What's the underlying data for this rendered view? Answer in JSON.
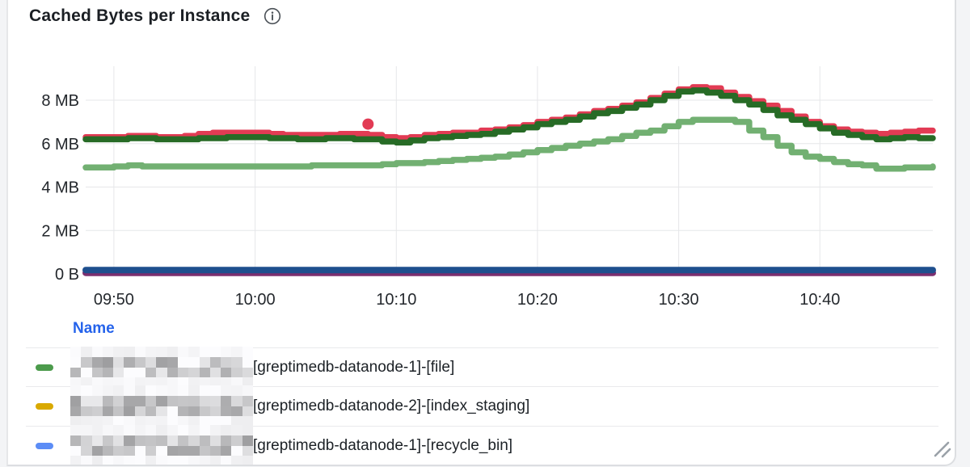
{
  "header": {
    "title": "Cached Bytes per Instance"
  },
  "icons": {
    "info": "circle-i-info",
    "resize": "double-diagonal-resize"
  },
  "legend": {
    "header": "Name",
    "rows": [
      {
        "color": "#4c9b4c",
        "label": "[greptimedb-datanode-1]-[file]",
        "prefix_redacted": true
      },
      {
        "color": "#d9a900",
        "label": "[greptimedb-datanode-2]-[index_staging]",
        "prefix_redacted": true
      },
      {
        "color": "#5c8df6",
        "label": "[greptimedb-datanode-1]-[recycle_bin]",
        "prefix_redacted": true
      }
    ]
  },
  "chart_data": {
    "type": "line",
    "title": "Cached Bytes per Instance",
    "ylabel": "",
    "xlabel": "",
    "unit": "bytes",
    "grid": true,
    "line_style": "step-after",
    "x_axis_minutes_span": 60,
    "x_start_time": "09:48",
    "ylim_mb": [
      0,
      9.5
    ],
    "y_ticks": [
      {
        "label": "8 MB",
        "mb": 8
      },
      {
        "label": "6 MB",
        "mb": 6
      },
      {
        "label": "4 MB",
        "mb": 4
      },
      {
        "label": "2 MB",
        "mb": 2
      },
      {
        "label": "0 B",
        "mb": 0
      }
    ],
    "x_ticks": [
      {
        "label": "09:50",
        "t": 2
      },
      {
        "label": "10:00",
        "t": 12
      },
      {
        "label": "10:10",
        "t": 22
      },
      {
        "label": "10:20",
        "t": 32
      },
      {
        "label": "10:30",
        "t": 42
      },
      {
        "label": "10:40",
        "t": 52
      }
    ],
    "series": [
      {
        "name": "unlabeled-red",
        "color": "#e23b54",
        "width": 7.5,
        "points": [
          [
            0,
            6.3
          ],
          [
            2,
            6.3
          ],
          [
            3,
            6.35
          ],
          [
            5,
            6.3
          ],
          [
            7,
            6.35
          ],
          [
            8,
            6.45
          ],
          [
            9,
            6.5
          ],
          [
            12,
            6.5
          ],
          [
            13,
            6.45
          ],
          [
            14,
            6.4
          ],
          [
            17,
            6.4
          ],
          [
            18,
            6.45
          ],
          [
            20,
            6.4
          ],
          [
            21,
            6.3
          ],
          [
            22,
            6.25
          ],
          [
            23,
            6.3
          ],
          [
            24,
            6.4
          ],
          [
            25,
            6.45
          ],
          [
            26,
            6.5
          ],
          [
            28,
            6.6
          ],
          [
            29,
            6.65
          ],
          [
            30,
            6.75
          ],
          [
            31,
            6.85
          ],
          [
            32,
            7.0
          ],
          [
            33,
            7.1
          ],
          [
            34,
            7.2
          ],
          [
            35,
            7.35
          ],
          [
            36,
            7.5
          ],
          [
            37,
            7.6
          ],
          [
            38,
            7.75
          ],
          [
            39,
            7.9
          ],
          [
            40,
            8.1
          ],
          [
            41,
            8.3
          ],
          [
            42,
            8.5
          ],
          [
            43,
            8.6
          ],
          [
            44,
            8.55
          ],
          [
            45,
            8.35
          ],
          [
            46,
            8.15
          ],
          [
            47,
            7.95
          ],
          [
            48,
            7.75
          ],
          [
            49,
            7.5
          ],
          [
            50,
            7.25
          ],
          [
            51,
            7.0
          ],
          [
            52,
            6.8
          ],
          [
            53,
            6.65
          ],
          [
            54,
            6.55
          ],
          [
            55,
            6.5
          ],
          [
            56,
            6.45
          ],
          [
            57,
            6.5
          ],
          [
            58,
            6.55
          ],
          [
            59,
            6.6
          ],
          [
            60,
            6.6
          ]
        ]
      },
      {
        "name": "unlabeled-dark-green",
        "color": "#276b26",
        "width": 7.5,
        "points": [
          [
            0,
            6.2
          ],
          [
            3,
            6.25
          ],
          [
            5,
            6.2
          ],
          [
            8,
            6.25
          ],
          [
            10,
            6.3
          ],
          [
            12,
            6.3
          ],
          [
            13,
            6.25
          ],
          [
            15,
            6.2
          ],
          [
            17,
            6.25
          ],
          [
            19,
            6.2
          ],
          [
            21,
            6.1
          ],
          [
            22,
            6.05
          ],
          [
            23,
            6.15
          ],
          [
            24,
            6.25
          ],
          [
            25,
            6.3
          ],
          [
            26,
            6.35
          ],
          [
            27,
            6.4
          ],
          [
            28,
            6.45
          ],
          [
            29,
            6.55
          ],
          [
            30,
            6.65
          ],
          [
            31,
            6.75
          ],
          [
            32,
            6.9
          ],
          [
            33,
            7.0
          ],
          [
            34,
            7.1
          ],
          [
            35,
            7.25
          ],
          [
            36,
            7.4
          ],
          [
            37,
            7.5
          ],
          [
            38,
            7.65
          ],
          [
            39,
            7.8
          ],
          [
            40,
            8.0
          ],
          [
            41,
            8.2
          ],
          [
            42,
            8.4
          ],
          [
            43,
            8.45
          ],
          [
            44,
            8.35
          ],
          [
            45,
            8.2
          ],
          [
            46,
            8.0
          ],
          [
            47,
            7.8
          ],
          [
            48,
            7.55
          ],
          [
            49,
            7.3
          ],
          [
            50,
            7.1
          ],
          [
            51,
            6.9
          ],
          [
            52,
            6.7
          ],
          [
            53,
            6.5
          ],
          [
            54,
            6.4
          ],
          [
            55,
            6.3
          ],
          [
            56,
            6.2
          ],
          [
            57,
            6.25
          ],
          [
            58,
            6.3
          ],
          [
            59,
            6.25
          ],
          [
            60,
            6.25
          ]
        ]
      },
      {
        "name": "unlabeled-light-green",
        "color": "#72b072",
        "width": 7.5,
        "points": [
          [
            0,
            4.9
          ],
          [
            2,
            4.95
          ],
          [
            3,
            5.0
          ],
          [
            4,
            4.95
          ],
          [
            10,
            4.95
          ],
          [
            16,
            5.0
          ],
          [
            20,
            5.0
          ],
          [
            21,
            5.05
          ],
          [
            22,
            5.1
          ],
          [
            24,
            5.15
          ],
          [
            25,
            5.2
          ],
          [
            26,
            5.25
          ],
          [
            27,
            5.3
          ],
          [
            28,
            5.35
          ],
          [
            29,
            5.4
          ],
          [
            30,
            5.5
          ],
          [
            31,
            5.6
          ],
          [
            32,
            5.7
          ],
          [
            33,
            5.8
          ],
          [
            34,
            5.9
          ],
          [
            35,
            6.0
          ],
          [
            36,
            6.1
          ],
          [
            37,
            6.2
          ],
          [
            38,
            6.35
          ],
          [
            39,
            6.5
          ],
          [
            40,
            6.6
          ],
          [
            41,
            6.8
          ],
          [
            42,
            7.0
          ],
          [
            43,
            7.1
          ],
          [
            45,
            7.1
          ],
          [
            46,
            7.0
          ],
          [
            47,
            6.6
          ],
          [
            48,
            6.3
          ],
          [
            49,
            5.9
          ],
          [
            50,
            5.6
          ],
          [
            51,
            5.4
          ],
          [
            52,
            5.3
          ],
          [
            53,
            5.15
          ],
          [
            54,
            5.05
          ],
          [
            55,
            5.0
          ],
          [
            56,
            4.85
          ],
          [
            58,
            4.9
          ],
          [
            60,
            4.95
          ]
        ]
      },
      {
        "name": "unlabeled-purple",
        "color": "#7b2e6f",
        "width": 8,
        "points": [
          [
            0,
            0.05
          ],
          [
            60,
            0.05
          ]
        ]
      },
      {
        "name": "unlabeled-dark-blue",
        "color": "#1e4f8e",
        "width": 8,
        "points": [
          [
            0,
            0.18
          ],
          [
            60,
            0.18
          ]
        ]
      }
    ],
    "outlier_point": {
      "series": "unlabeled-red",
      "t": 20,
      "mb": 6.9
    },
    "legend_position": "bottom-table"
  }
}
